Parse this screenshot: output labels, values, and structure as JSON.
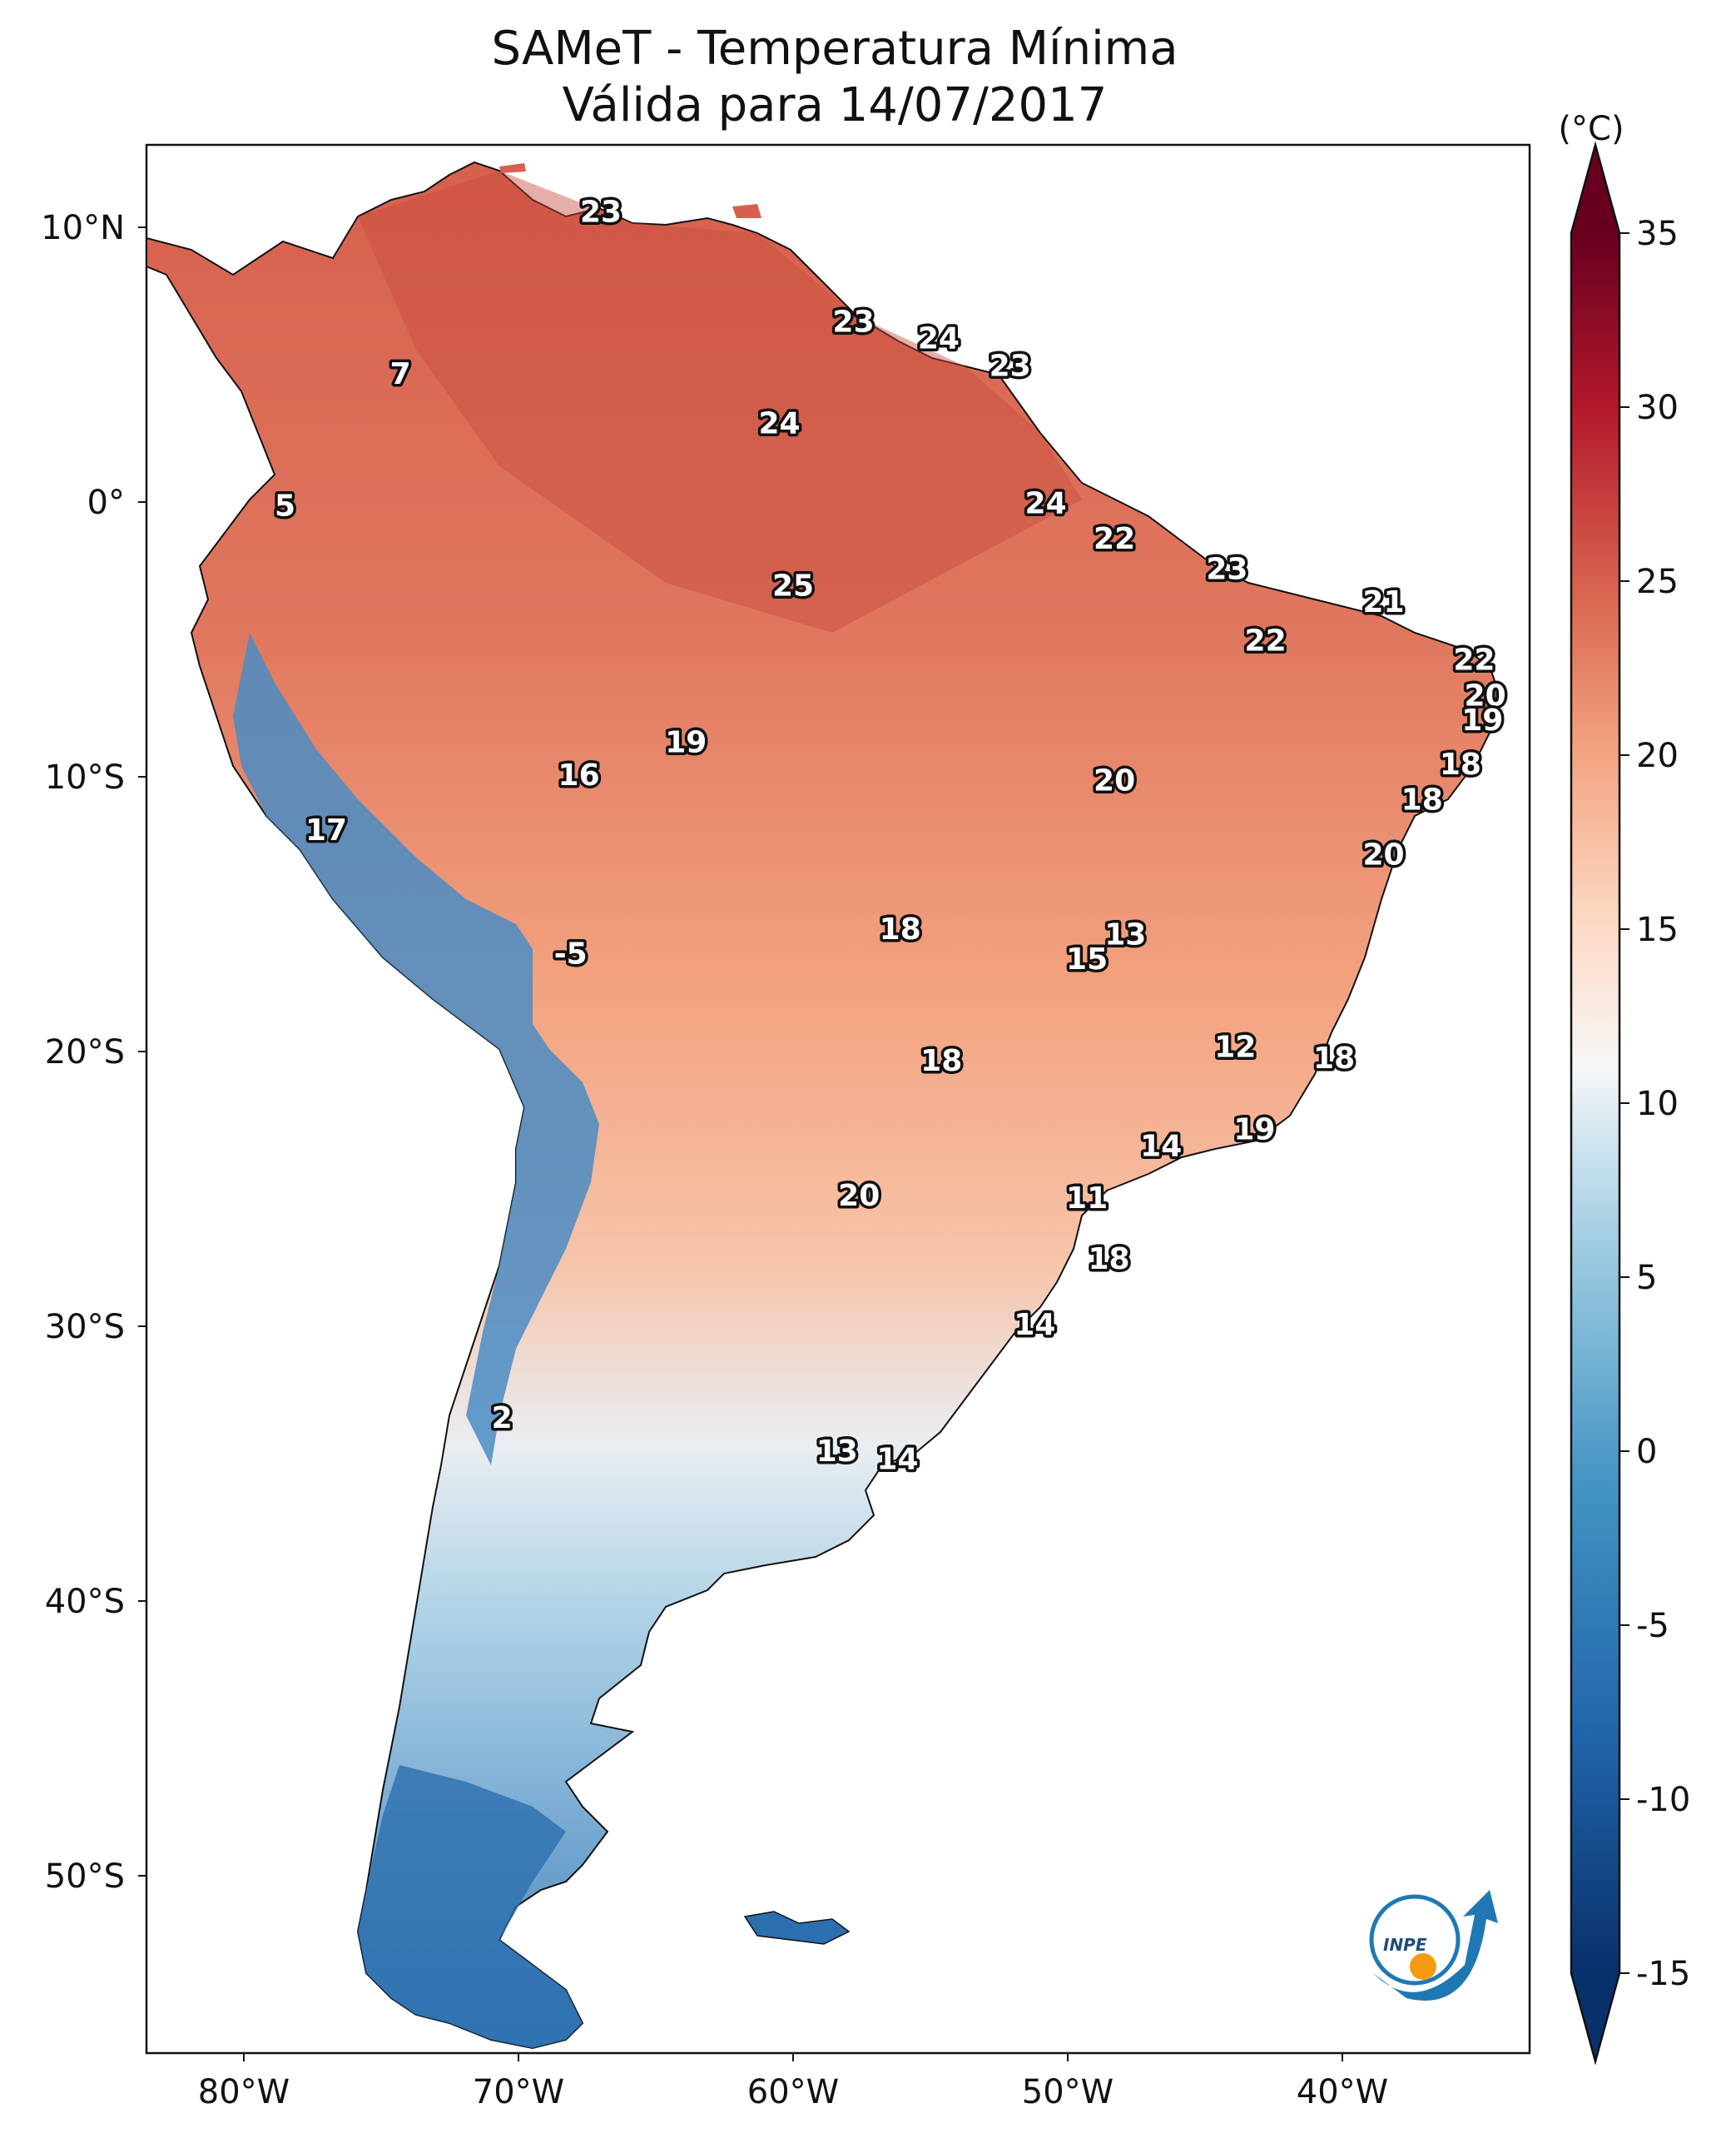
{
  "title": "SAMeT - Temperatura Mínima",
  "subtitle": "Válida para 14/07/2017",
  "colorbar": {
    "unit": "(°C)",
    "ticks": [
      "35",
      "30",
      "25",
      "20",
      "15",
      "10",
      "5",
      "0",
      "-5",
      "-10",
      "-15"
    ]
  },
  "axes": {
    "lat_ticks": [
      "10°N",
      "0°",
      "10°S",
      "20°S",
      "30°S",
      "40°S",
      "50°S"
    ],
    "lon_ticks": [
      "80°W",
      "70°W",
      "60°W",
      "50°W",
      "40°W"
    ]
  },
  "logo": {
    "text": "INPE"
  },
  "temperature_labels": [
    {
      "value": "23",
      "lat": 10.5,
      "lon": -67.0
    },
    {
      "value": "7",
      "lat": 4.6,
      "lon": -74.3
    },
    {
      "value": "23",
      "lat": 6.5,
      "lon": -57.8
    },
    {
      "value": "24",
      "lat": 5.9,
      "lon": -54.7
    },
    {
      "value": "23",
      "lat": 4.9,
      "lon": -52.1
    },
    {
      "value": "24",
      "lat": 2.8,
      "lon": -60.5
    },
    {
      "value": "5",
      "lat": -0.2,
      "lon": -78.5
    },
    {
      "value": "24",
      "lat": -0.1,
      "lon": -50.8
    },
    {
      "value": "22",
      "lat": -1.4,
      "lon": -48.3
    },
    {
      "value": "23",
      "lat": -2.5,
      "lon": -44.2
    },
    {
      "value": "25",
      "lat": -3.1,
      "lon": -60.0
    },
    {
      "value": "21",
      "lat": -3.7,
      "lon": -38.5
    },
    {
      "value": "22",
      "lat": -5.1,
      "lon": -42.8
    },
    {
      "value": "22",
      "lat": -5.8,
      "lon": -35.2
    },
    {
      "value": "20",
      "lat": -7.1,
      "lon": -34.8
    },
    {
      "value": "19",
      "lat": -8.0,
      "lon": -34.9
    },
    {
      "value": "19",
      "lat": -8.8,
      "lon": -63.9
    },
    {
      "value": "18",
      "lat": -9.6,
      "lon": -35.7
    },
    {
      "value": "16",
      "lat": -10.0,
      "lon": -67.8
    },
    {
      "value": "20",
      "lat": -10.2,
      "lon": -48.3
    },
    {
      "value": "18",
      "lat": -10.9,
      "lon": -37.1
    },
    {
      "value": "17",
      "lat": -12.0,
      "lon": -77.0
    },
    {
      "value": "20",
      "lat": -12.9,
      "lon": -38.5
    },
    {
      "value": "18",
      "lat": -15.6,
      "lon": -56.1
    },
    {
      "value": "13",
      "lat": -15.8,
      "lon": -47.9
    },
    {
      "value": "15",
      "lat": -16.7,
      "lon": -49.3
    },
    {
      "value": "-5",
      "lat": -16.5,
      "lon": -68.1
    },
    {
      "value": "12",
      "lat": -19.9,
      "lon": -43.9
    },
    {
      "value": "18",
      "lat": -20.3,
      "lon": -40.3
    },
    {
      "value": "18",
      "lat": -20.4,
      "lon": -54.6
    },
    {
      "value": "19",
      "lat": -22.9,
      "lon": -43.2
    },
    {
      "value": "14",
      "lat": -23.5,
      "lon": -46.6
    },
    {
      "value": "20",
      "lat": -25.3,
      "lon": -57.6
    },
    {
      "value": "11",
      "lat": -25.4,
      "lon": -49.3
    },
    {
      "value": "18",
      "lat": -27.6,
      "lon": -48.5
    },
    {
      "value": "14",
      "lat": -30.0,
      "lon": -51.2
    },
    {
      "value": "2",
      "lat": -33.4,
      "lon": -70.6
    },
    {
      "value": "13",
      "lat": -34.6,
      "lon": -58.4
    },
    {
      "value": "14",
      "lat": -34.9,
      "lon": -56.2
    }
  ]
}
